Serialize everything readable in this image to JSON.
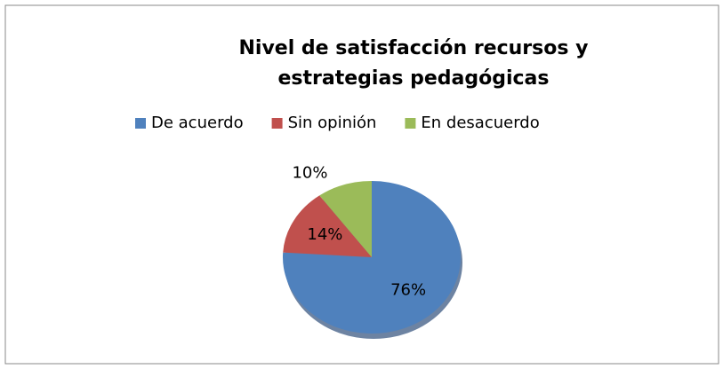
{
  "chart_data": {
    "type": "pie",
    "title": "Nivel de satisfacción  recursos y estrategias pedagógicas",
    "categories": [
      "De acuerdo",
      "Sin opinión",
      "En desacuerdo"
    ],
    "values": [
      76,
      14,
      10
    ],
    "value_labels": [
      "76%",
      "14%",
      "10%"
    ],
    "colors": [
      "#4f81bd",
      "#c0504d",
      "#9bbb59"
    ],
    "legend": "top"
  }
}
